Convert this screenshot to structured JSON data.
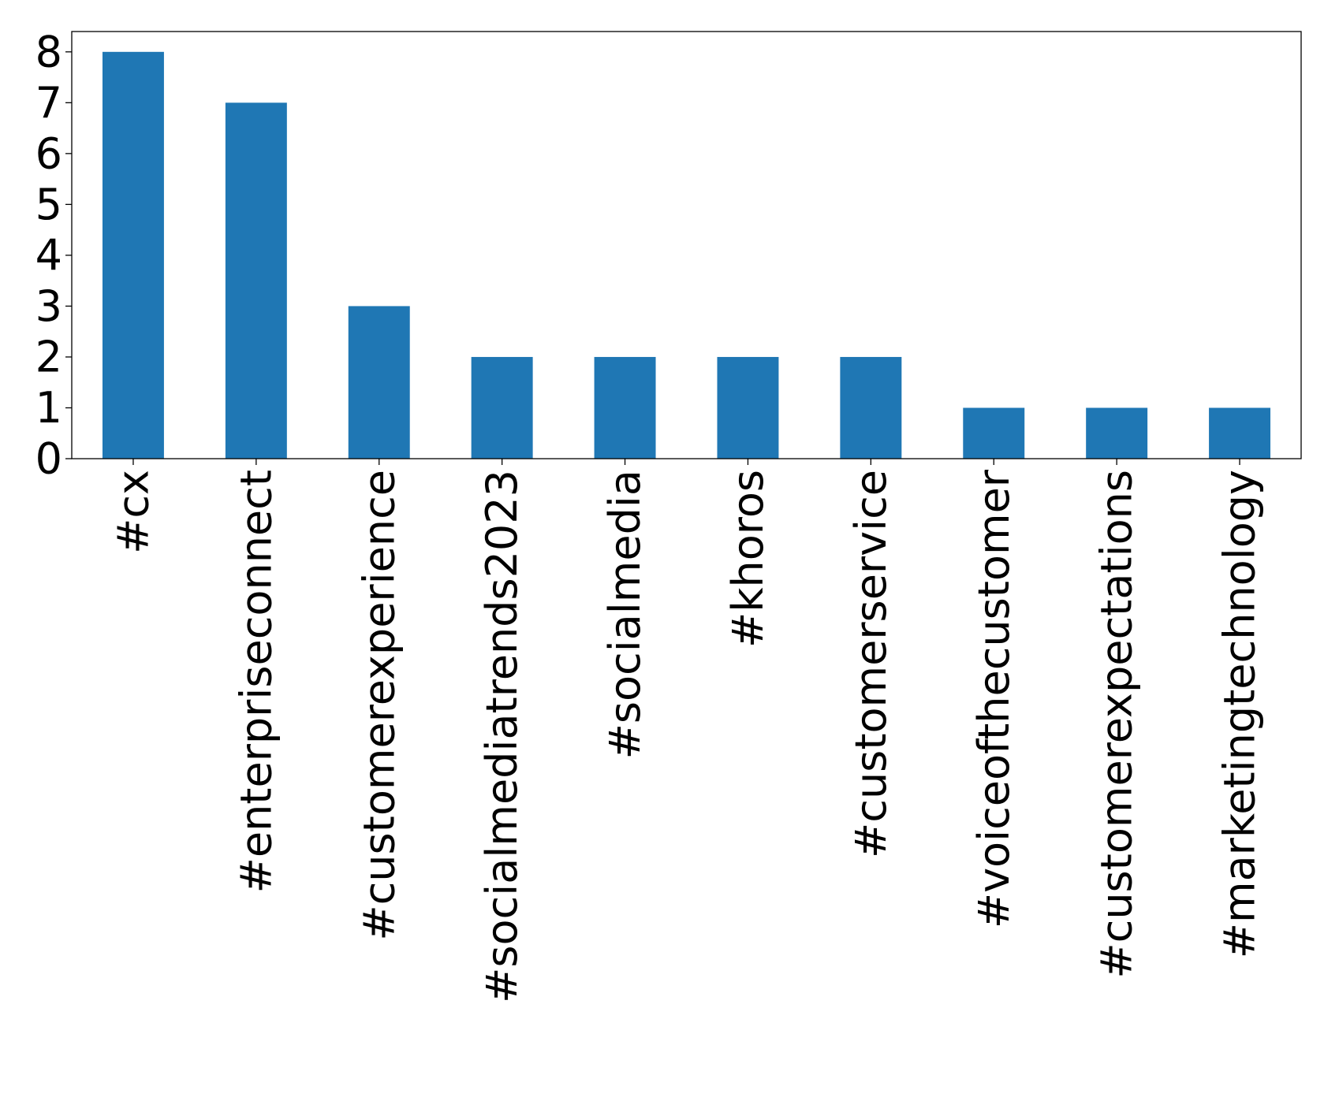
{
  "chart_data": {
    "type": "bar",
    "title": "",
    "xlabel": "",
    "ylabel": "",
    "categories": [
      "#cx",
      "#enterpriseconnect",
      "#customerexperience",
      "#socialmediatrends2023",
      "#socialmedia",
      "#khoros",
      "#customerservice",
      "#voiceofthecustomer",
      "#customerexpectations",
      "#marketingtechnology"
    ],
    "values": [
      8,
      7,
      3,
      2,
      2,
      2,
      2,
      1,
      1,
      1
    ],
    "ylim": [
      0,
      8.4
    ],
    "yticks": [
      "0",
      "1",
      "2",
      "3",
      "4",
      "5",
      "6",
      "7",
      "8"
    ],
    "grid": false,
    "legend": "none",
    "bar_color": "#1f77b4"
  }
}
